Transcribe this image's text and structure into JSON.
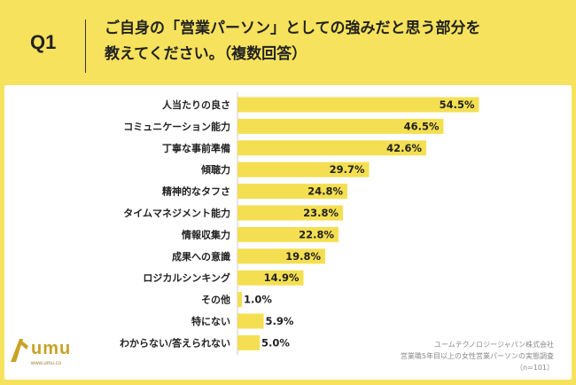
{
  "question": {
    "number": "Q1",
    "text_line1": "ご自身の「営業パーソン」としての強みだと思う部分を",
    "text_line2": "教えてください。（複数回答）"
  },
  "chart_data": {
    "type": "bar",
    "orientation": "horizontal",
    "categories": [
      "人当たりの良さ",
      "コミュニケーション能力",
      "丁寧な事前準備",
      "傾聴力",
      "精神的なタフさ",
      "タイムマネジメント能力",
      "情報収集力",
      "成果への意識",
      "ロジカルシンキング",
      "その他",
      "特にない",
      "わからない/答えられない"
    ],
    "values": [
      54.5,
      46.5,
      42.6,
      29.7,
      24.8,
      23.8,
      22.8,
      19.8,
      14.9,
      1.0,
      5.9,
      5.0
    ],
    "value_labels": [
      "54.5%",
      "46.5%",
      "42.6%",
      "29.7%",
      "24.8%",
      "23.8%",
      "22.8%",
      "19.8%",
      "14.9%",
      "1.0%",
      "5.9%",
      "5.0%"
    ],
    "bar_color": "#f4df52",
    "xlim": [
      0,
      60
    ],
    "grid": false
  },
  "logo": {
    "text": "umu",
    "url": "www.umu.co"
  },
  "footnote": {
    "line1": "ユームテクノロジージャパン株式会社",
    "line2": "営業職5年目以上の女性営業パーソンの実態調査",
    "line3": "（n=101）"
  },
  "colors": {
    "background": "#f6e25c",
    "panel": "#ffffff",
    "bar": "#f4df52",
    "text": "#222222"
  }
}
